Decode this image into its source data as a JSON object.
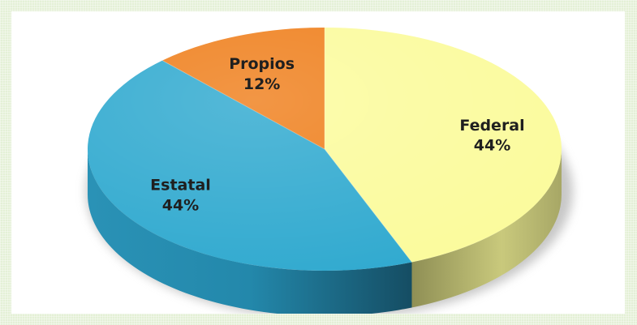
{
  "chart_data": {
    "type": "pie",
    "style": "3d",
    "title": "",
    "legend": "none",
    "slices": [
      {
        "name": "Federal",
        "value": 44,
        "label": "44%",
        "color": "#fbfb9c"
      },
      {
        "name": "Estatal",
        "value": 44,
        "label": "44%",
        "color": "#2fa9cf"
      },
      {
        "name": "Propios",
        "value": 12,
        "label": "12%",
        "color": "#ef7f1c"
      }
    ]
  }
}
